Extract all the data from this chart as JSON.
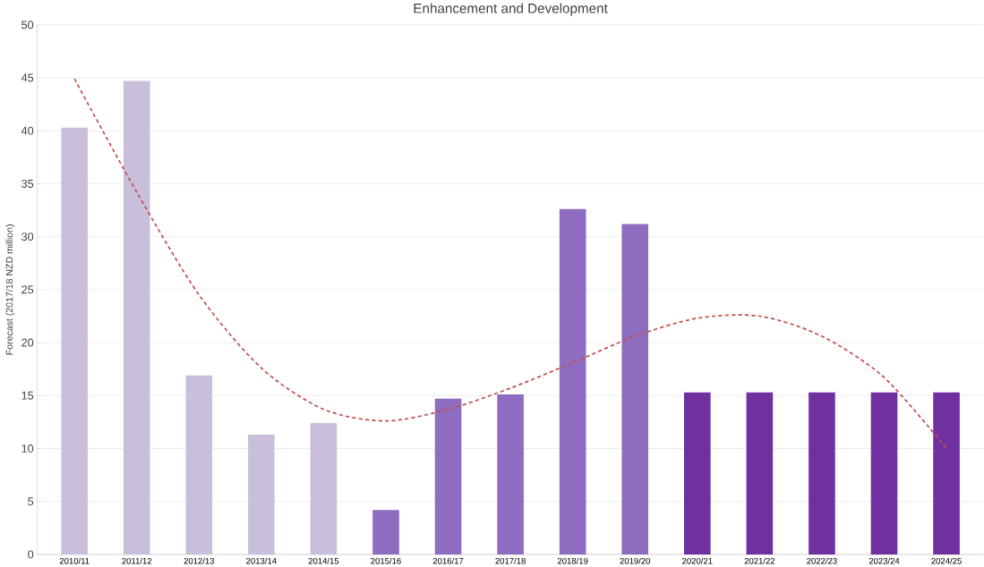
{
  "chart_data": {
    "type": "bar",
    "title": "Enhancement and Development",
    "ylabel": "Forecast (2017/18 NZD million)",
    "categories": [
      "2010/11",
      "2011/12",
      "2012/13",
      "2013/14",
      "2014/15",
      "2015/16",
      "2016/17",
      "2017/18",
      "2018/19",
      "2019/20",
      "2020/21",
      "2021/22",
      "2022/23",
      "2023/24",
      "2024/25"
    ],
    "series": [
      {
        "values": [
          40.3,
          44.7,
          16.9,
          11.3,
          12.4,
          4.2,
          14.7,
          15.1,
          32.6,
          31.2,
          15.3,
          15.3,
          15.3,
          15.3,
          15.3
        ],
        "colors": [
          "#c9bfdb",
          "#c9bfdb",
          "#c9bfdb",
          "#c9bfdb",
          "#c9bfdb",
          "#8e6cc0",
          "#8e6cc0",
          "#8e6cc0",
          "#8e6cc0",
          "#8e6cc0",
          "#7030a0",
          "#7030a0",
          "#7030a0",
          "#7030a0",
          "#7030a0"
        ]
      },
      {
        "type": "line",
        "color": "#c0504d",
        "line_style": "dashed",
        "values": [
          44.9,
          34.2,
          24.5,
          17.6,
          13.7,
          12.6,
          13.7,
          15.7,
          18.1,
          20.6,
          22.3,
          22.5,
          20.6,
          16.7,
          10.0
        ]
      }
    ],
    "ylim": [
      0,
      50
    ],
    "yticks": [
      0,
      5,
      10,
      15,
      20,
      25,
      30,
      35,
      40,
      45,
      50
    ],
    "grid": "y",
    "marker": "none"
  }
}
